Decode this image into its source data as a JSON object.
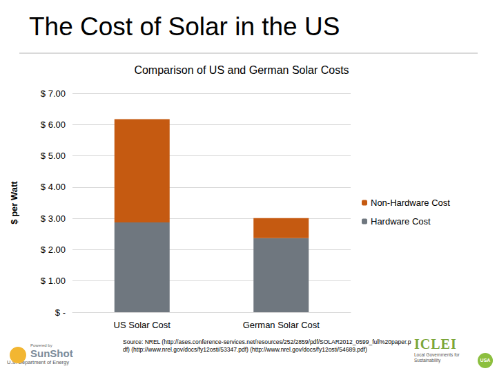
{
  "page": {
    "title": "The Cost of Solar in the US",
    "source": "Source: NREL (http://ases.conference-services.net/resources/252/2859/pdf/SOLAR2012_0599_full%20paper.pdf) (http://www.nrel.gov/docs/fy12osti/53347.pdf) (http://www.nrel.gov/docs/fy12osti/54689.pdf)",
    "logo_left": {
      "powered": "Powered by",
      "name": "SunShot",
      "department": "U.S. Department of Energy"
    },
    "logo_right": {
      "name": "ICLEI",
      "tagline": "Local Governments for Sustainability",
      "country": "USA"
    }
  },
  "chart_data": {
    "type": "bar",
    "title": "Comparison of US and German Solar Costs",
    "ylabel": "$ per Watt",
    "categories": [
      "US Solar Cost",
      "German Solar Cost"
    ],
    "stacked": true,
    "series": [
      {
        "name": "Hardware Cost",
        "color": "#6f777f",
        "values": [
          2.87,
          2.37
        ]
      },
      {
        "name": "Non-Hardware Cost",
        "color": "#c55a11",
        "values": [
          3.3,
          0.64
        ]
      }
    ],
    "ylim": [
      0,
      7
    ],
    "yticks": [
      {
        "value": 0,
        "label": "$ -"
      },
      {
        "value": 1,
        "label": "$ 1.00"
      },
      {
        "value": 2,
        "label": "$ 2.00"
      },
      {
        "value": 3,
        "label": "$ 3.00"
      },
      {
        "value": 4,
        "label": "$ 4.00"
      },
      {
        "value": 5,
        "label": "$ 5.00"
      },
      {
        "value": 6,
        "label": "$ 6.00"
      },
      {
        "value": 7,
        "label": "$ 7.00"
      }
    ],
    "grid": true,
    "legend": "right"
  }
}
